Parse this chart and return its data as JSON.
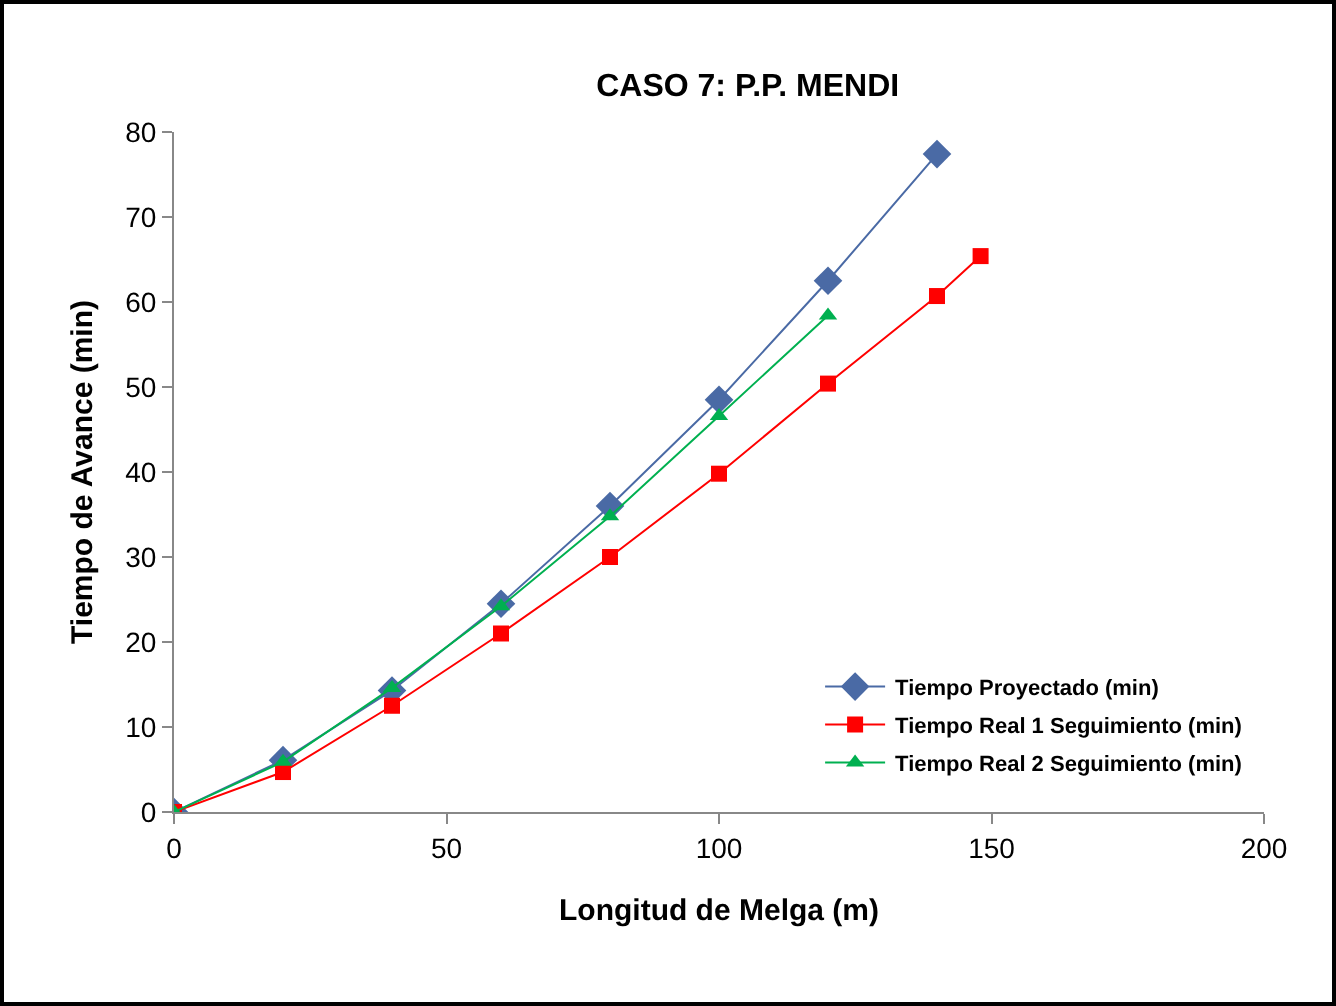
{
  "chart_data": {
    "type": "line",
    "title": "CASO 7: P.P. MENDI",
    "xlabel": "Longitud de Melga (m)",
    "ylabel": "Tiempo de Avance (min)",
    "xlim": [
      0,
      200
    ],
    "xticks": [
      0,
      50,
      100,
      150,
      200
    ],
    "ylim": [
      0,
      80
    ],
    "yticks": [
      0,
      10,
      20,
      30,
      40,
      50,
      60,
      70,
      80
    ],
    "grid": false,
    "legend": "bottom right",
    "series": [
      {
        "name": "Tiempo Proyectado (min)",
        "color": "#4a6aa5",
        "marker": "diamond",
        "x": [
          0,
          20,
          40,
          60,
          80,
          100,
          120,
          140
        ],
        "values": [
          0,
          6.1,
          14.3,
          24.5,
          36,
          48.5,
          62.5,
          77.4
        ]
      },
      {
        "name": "Tiempo Real 1 Seguimiento (min)",
        "color": "#ff0000",
        "marker": "square",
        "x": [
          0,
          20,
          40,
          60,
          80,
          100,
          120,
          140,
          148
        ],
        "values": [
          0,
          4.7,
          12.5,
          21,
          30,
          39.8,
          50.4,
          60.7,
          65.4
        ]
      },
      {
        "name": "Tiempo Real 2 Seguimiento (min)",
        "color": "#00b050",
        "marker": "triangle",
        "x": [
          0,
          20,
          40,
          60,
          80,
          100,
          120
        ],
        "values": [
          0,
          5.9,
          14.6,
          24.2,
          34.8,
          46.6,
          58.4
        ]
      }
    ]
  }
}
